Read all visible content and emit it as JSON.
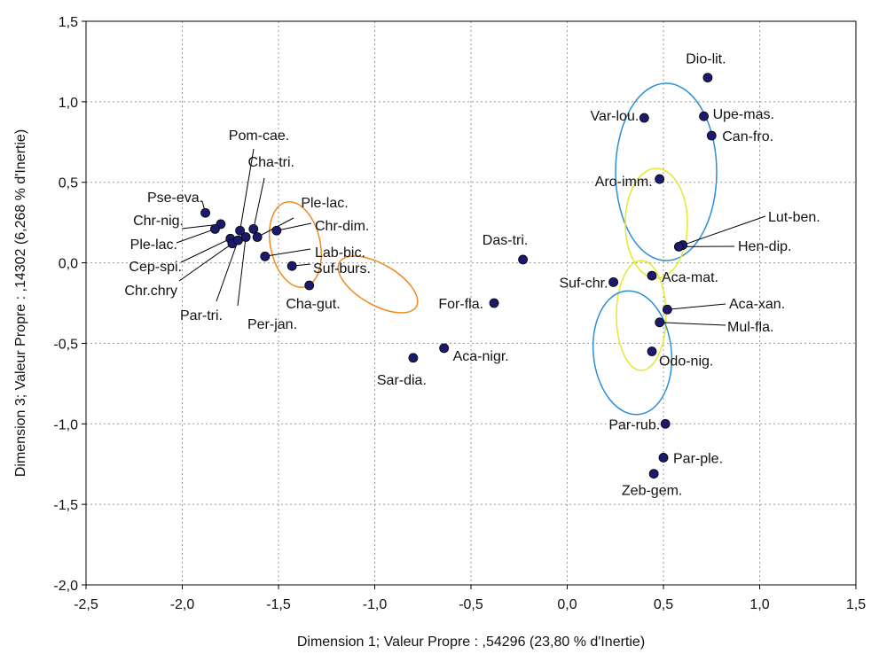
{
  "chart_data": {
    "type": "scatter",
    "xlabel": "Dimension 1; Valeur Propre : ,54296 (23,80  % d'Inertie)",
    "ylabel": "Dimension 3; Valeur Propre : ,14302 (6,268  % d'Inertie)",
    "xlim": [
      -2.5,
      1.5
    ],
    "ylim": [
      -2.0,
      1.5
    ],
    "x_ticks": [
      "-2,5",
      "-2,0",
      "-1,5",
      "-1,0",
      "-0,5",
      "0,0",
      "0,5",
      "1,0",
      "1,5"
    ],
    "y_ticks": [
      "1,5",
      "1,0",
      "0,5",
      "0,0",
      "-0,5",
      "-1,0",
      "-1,5",
      "-2,0"
    ],
    "grid": true,
    "marker_color": "#1c1a6e",
    "points": [
      {
        "label": "Dio-lit.",
        "x": 0.73,
        "y": 1.15
      },
      {
        "label": "Upe-mas.",
        "x": 0.71,
        "y": 0.91
      },
      {
        "label": "Var-lou.",
        "x": 0.4,
        "y": 0.9
      },
      {
        "label": "Can-fro.",
        "x": 0.75,
        "y": 0.79
      },
      {
        "label": "Aro-imm.",
        "x": 0.48,
        "y": 0.52
      },
      {
        "label": "Lut-ben.",
        "x": 0.6,
        "y": 0.11
      },
      {
        "label": "Hen-dip.",
        "x": 0.58,
        "y": 0.1
      },
      {
        "label": "Aca-mat.",
        "x": 0.44,
        "y": -0.08
      },
      {
        "label": "Suf-chr.",
        "x": 0.24,
        "y": -0.12
      },
      {
        "label": "Aca-xan.",
        "x": 0.52,
        "y": -0.29
      },
      {
        "label": "Mul-fla.",
        "x": 0.48,
        "y": -0.37
      },
      {
        "label": "Odo-nig.",
        "x": 0.44,
        "y": -0.55
      },
      {
        "label": "Par-rub.",
        "x": 0.51,
        "y": -1.0
      },
      {
        "label": "Par-ple.",
        "x": 0.5,
        "y": -1.21
      },
      {
        "label": "Zeb-gem.",
        "x": 0.45,
        "y": -1.31
      },
      {
        "label": "Das-tri.",
        "x": -0.23,
        "y": 0.02
      },
      {
        "label": "For-fla.",
        "x": -0.38,
        "y": -0.25
      },
      {
        "label": "Aca-nigr.",
        "x": -0.64,
        "y": -0.53
      },
      {
        "label": "Sar-dia.",
        "x": -0.8,
        "y": -0.59
      },
      {
        "label": "Pse-eva.",
        "x": -1.88,
        "y": 0.31
      },
      {
        "label": "Chr-nig.",
        "x": -1.8,
        "y": 0.24
      },
      {
        "label": "Ple-lac.",
        "x": -1.83,
        "y": 0.21
      },
      {
        "label": "Cep-spi.",
        "x": -1.75,
        "y": 0.15
      },
      {
        "label": "Chr.chry",
        "x": -1.74,
        "y": 0.12
      },
      {
        "label": "Par-tri.",
        "x": -1.71,
        "y": 0.14
      },
      {
        "label": "Pom-cae.",
        "x": -1.7,
        "y": 0.2
      },
      {
        "label": "Per-jan.",
        "x": -1.67,
        "y": 0.16
      },
      {
        "label": "Cha-tri.",
        "x": -1.63,
        "y": 0.21
      },
      {
        "label": "Ple-lac. ",
        "x": -1.61,
        "y": 0.16
      },
      {
        "label": "Chr-dim.",
        "x": -1.51,
        "y": 0.2
      },
      {
        "label": "Lab-bic.",
        "x": -1.57,
        "y": 0.04
      },
      {
        "label": "Suf-burs.",
        "x": -1.43,
        "y": -0.02
      },
      {
        "label": "Cha-gut.",
        "x": -1.34,
        "y": -0.14
      }
    ]
  }
}
